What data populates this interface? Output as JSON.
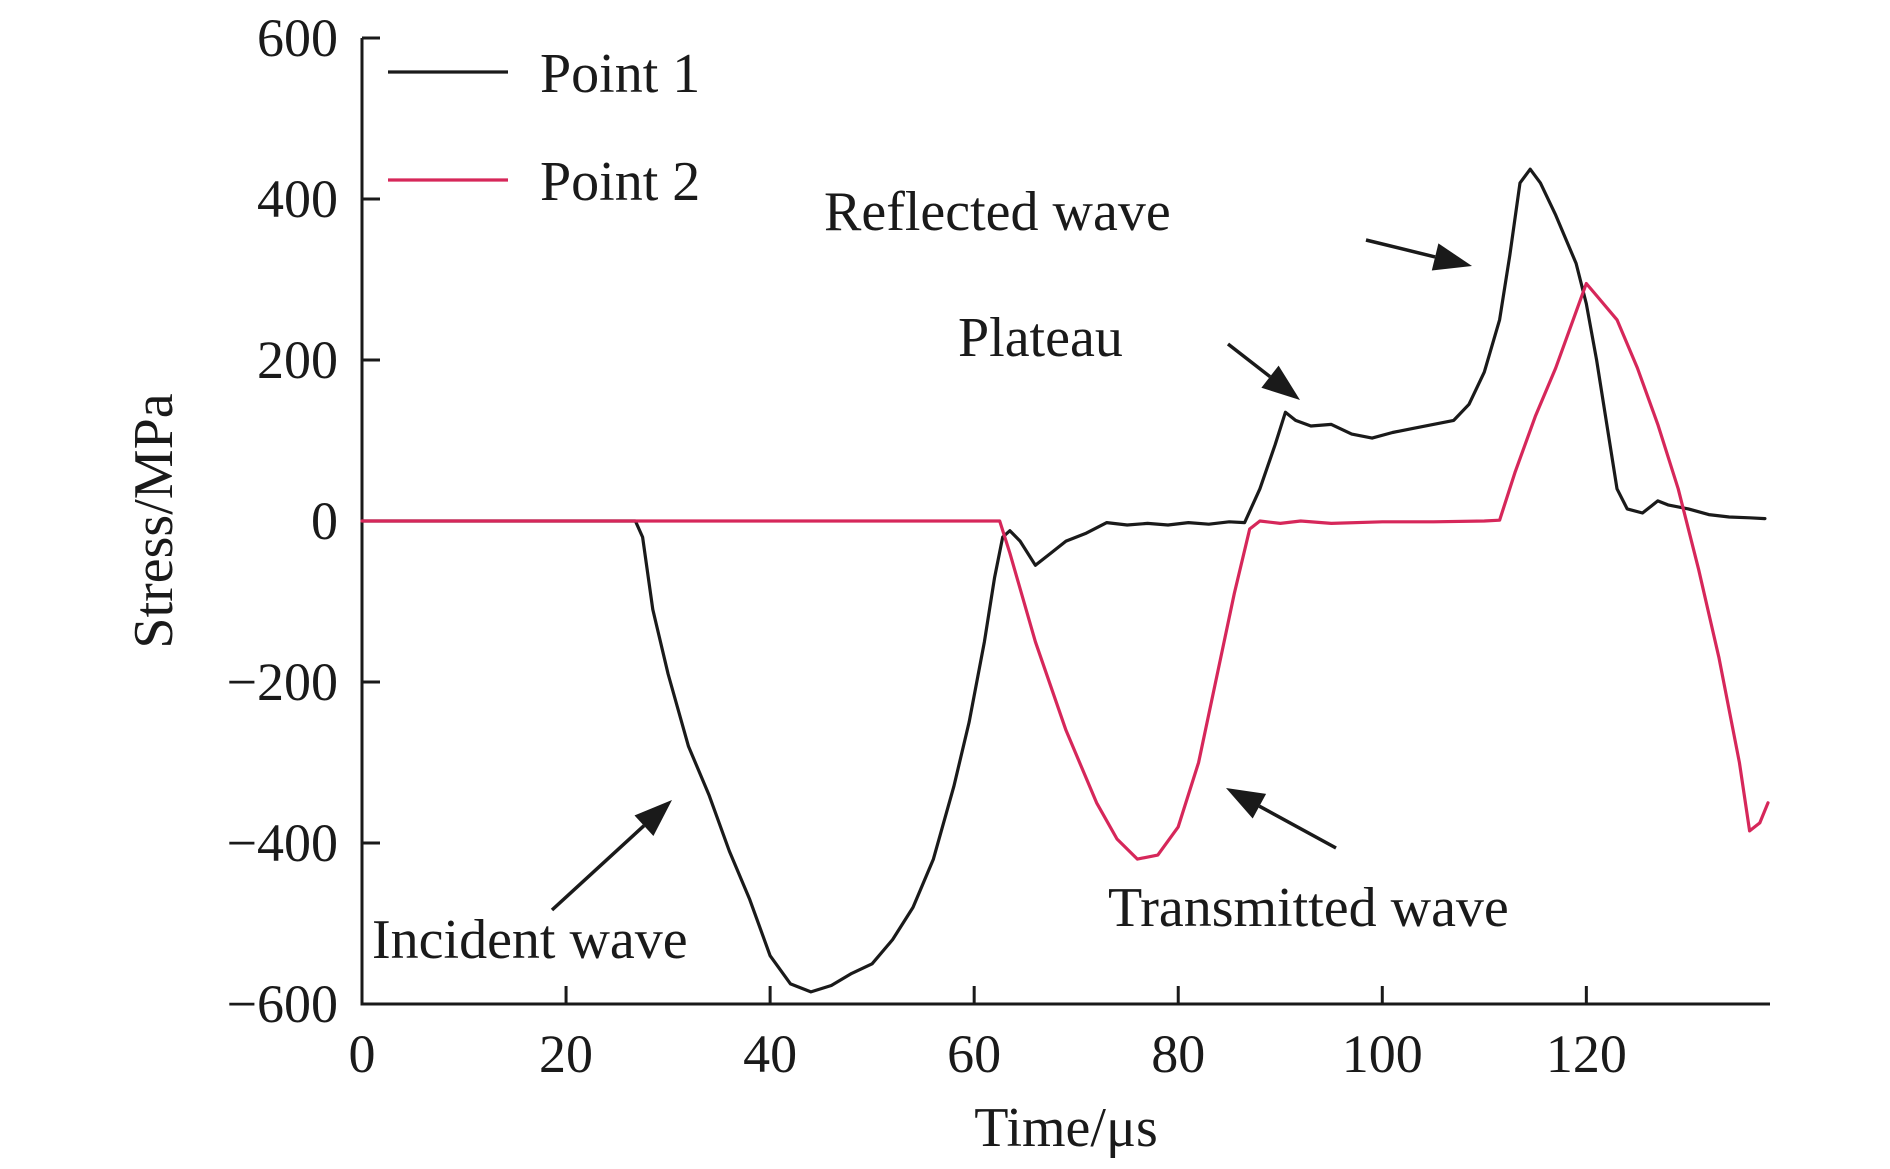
{
  "chart_data": {
    "type": "line",
    "title": "",
    "xlabel": "Time/μs",
    "ylabel": "Stress/MPa",
    "xlim": [
      0,
      138
    ],
    "ylim": [
      -600,
      600
    ],
    "x_ticks": [
      0,
      20,
      40,
      60,
      80,
      100,
      120
    ],
    "x_tick_labels": [
      "0",
      "20",
      "40",
      "60",
      "80",
      "100",
      "120"
    ],
    "y_ticks": [
      -600,
      -400,
      -200,
      0,
      200,
      400,
      600
    ],
    "y_tick_labels": [
      "−600",
      "−400",
      "−200",
      "0",
      "200",
      "400",
      "600"
    ],
    "grid": false,
    "legend_position": "top-left",
    "series": [
      {
        "name": "Point 1",
        "color": "#1a1a1a",
        "points": [
          [
            0,
            0
          ],
          [
            10,
            0
          ],
          [
            20,
            0
          ],
          [
            26.8,
            0
          ],
          [
            27.5,
            -20
          ],
          [
            28.5,
            -110
          ],
          [
            30,
            -190
          ],
          [
            32,
            -280
          ],
          [
            34,
            -340
          ],
          [
            36,
            -410
          ],
          [
            38,
            -470
          ],
          [
            40,
            -540
          ],
          [
            42,
            -575
          ],
          [
            44,
            -585
          ],
          [
            46,
            -577
          ],
          [
            48,
            -562
          ],
          [
            50,
            -550
          ],
          [
            52,
            -520
          ],
          [
            54,
            -480
          ],
          [
            56,
            -420
          ],
          [
            58,
            -330
          ],
          [
            59.5,
            -250
          ],
          [
            61,
            -150
          ],
          [
            62,
            -70
          ],
          [
            62.8,
            -20
          ],
          [
            63.5,
            -12
          ],
          [
            64.5,
            -25
          ],
          [
            66,
            -55
          ],
          [
            67.5,
            -40
          ],
          [
            69,
            -25
          ],
          [
            71,
            -15
          ],
          [
            73,
            -2
          ],
          [
            75,
            -5
          ],
          [
            77,
            -3
          ],
          [
            79,
            -5
          ],
          [
            81,
            -2
          ],
          [
            83,
            -4
          ],
          [
            85,
            -1
          ],
          [
            86.5,
            -2
          ],
          [
            88,
            40
          ],
          [
            89.5,
            95
          ],
          [
            90.5,
            135
          ],
          [
            91.5,
            125
          ],
          [
            93,
            118
          ],
          [
            95,
            120
          ],
          [
            97,
            108
          ],
          [
            99,
            103
          ],
          [
            101,
            110
          ],
          [
            103,
            115
          ],
          [
            105,
            120
          ],
          [
            107,
            125
          ],
          [
            108.5,
            145
          ],
          [
            110,
            185
          ],
          [
            111.5,
            250
          ],
          [
            112.5,
            330
          ],
          [
            113.5,
            420
          ],
          [
            114.5,
            437
          ],
          [
            115.5,
            420
          ],
          [
            117,
            380
          ],
          [
            119,
            320
          ],
          [
            120,
            270
          ],
          [
            121,
            200
          ],
          [
            122,
            120
          ],
          [
            123,
            40
          ],
          [
            124,
            15
          ],
          [
            125.5,
            10
          ],
          [
            127,
            25
          ],
          [
            128,
            20
          ],
          [
            130,
            15
          ],
          [
            132,
            8
          ],
          [
            134,
            5
          ],
          [
            136,
            4
          ],
          [
            137.5,
            3
          ]
        ]
      },
      {
        "name": "Point 2",
        "color": "#d6275a",
        "points": [
          [
            0,
            0
          ],
          [
            20,
            0
          ],
          [
            40,
            0
          ],
          [
            60,
            0
          ],
          [
            62.5,
            0
          ],
          [
            63.5,
            -40
          ],
          [
            66,
            -150
          ],
          [
            69,
            -260
          ],
          [
            72,
            -350
          ],
          [
            74,
            -395
          ],
          [
            76,
            -420
          ],
          [
            78,
            -415
          ],
          [
            80,
            -380
          ],
          [
            82,
            -300
          ],
          [
            84,
            -180
          ],
          [
            85.5,
            -90
          ],
          [
            87,
            -10
          ],
          [
            88,
            0
          ],
          [
            90,
            -3
          ],
          [
            92,
            0
          ],
          [
            95,
            -3
          ],
          [
            100,
            -1
          ],
          [
            105,
            -1
          ],
          [
            110,
            0
          ],
          [
            111.5,
            1
          ],
          [
            113,
            60
          ],
          [
            115,
            130
          ],
          [
            117,
            190
          ],
          [
            119,
            260
          ],
          [
            120,
            295
          ],
          [
            121,
            280
          ],
          [
            123,
            250
          ],
          [
            125,
            190
          ],
          [
            127,
            120
          ],
          [
            129,
            40
          ],
          [
            131,
            -60
          ],
          [
            133,
            -170
          ],
          [
            135,
            -300
          ],
          [
            136,
            -385
          ],
          [
            137,
            -375
          ],
          [
            137.8,
            -350
          ]
        ]
      }
    ],
    "annotations": [
      {
        "text": "Incident wave"
      },
      {
        "text": "Transmitted wave"
      },
      {
        "text": "Plateau"
      },
      {
        "text": "Reflected wave"
      }
    ]
  }
}
